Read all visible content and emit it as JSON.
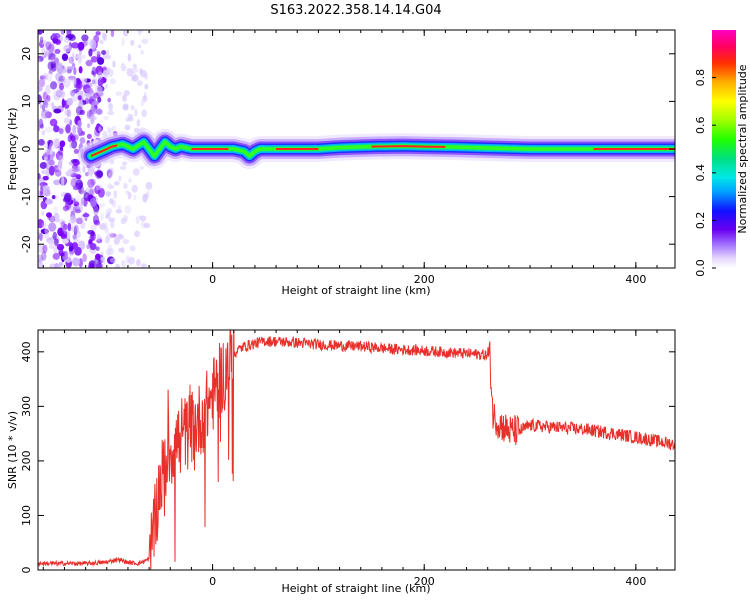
{
  "title": "S163.2022.358.14.14.G04",
  "chart_data": [
    {
      "type": "heatmap",
      "xlabel": "Height of straight line (km)",
      "ylabel": "Frequency (Hz)",
      "xlim": [
        -165,
        437
      ],
      "ylim": [
        -25,
        25
      ],
      "x_ticks": [
        0,
        200,
        400
      ],
      "y_ticks": [
        -20,
        -10,
        0,
        10,
        20
      ],
      "ridge": {
        "x": [
          -115,
          -105,
          -95,
          -85,
          -75,
          -65,
          -60,
          -55,
          -50,
          -45,
          -40,
          -35,
          -30,
          -20,
          0,
          20,
          30,
          35,
          40,
          45,
          50,
          60,
          80,
          100,
          120,
          150,
          180,
          200,
          230,
          260,
          300,
          350,
          400,
          437
        ],
        "y": [
          -1.5,
          -0.5,
          0.5,
          1,
          0,
          1.5,
          0,
          -1.5,
          0,
          1.5,
          0.5,
          0,
          0.5,
          0,
          0,
          0,
          -0.5,
          -1.5,
          -0.5,
          0,
          0,
          0,
          0,
          0,
          0.3,
          0.5,
          0.6,
          0.5,
          0.4,
          0.2,
          0,
          0,
          0,
          0
        ]
      },
      "colorbar": {
        "label": "Normalized spectral amplitude",
        "range": [
          0,
          1
        ],
        "ticks": [
          0.0,
          0.2,
          0.4,
          0.6,
          0.8
        ],
        "tick_labels": [
          "0.0",
          "0.2",
          "0.4",
          "0.6",
          "0.8"
        ],
        "colormap": "gist_ncar"
      }
    },
    {
      "type": "line",
      "xlabel": "Height of straight line (km)",
      "ylabel": "SNR (10 * v/v)",
      "xlim": [
        -165,
        437
      ],
      "ylim": [
        0,
        440
      ],
      "x_ticks": [
        0,
        200,
        400
      ],
      "y_ticks": [
        0,
        100,
        200,
        300,
        400
      ],
      "color": "#e8302a",
      "series": [
        {
          "x": [
            -165,
            -140,
            -120,
            -100,
            -90,
            -80,
            -70,
            -60,
            -55,
            -50,
            -45,
            -40,
            -35,
            -30,
            -25,
            -20,
            -15,
            -10,
            -5,
            0,
            5,
            10,
            15,
            20,
            25,
            30,
            40,
            50,
            70,
            90,
            110,
            140,
            170,
            200,
            230,
            255,
            262,
            265,
            270,
            280,
            290,
            300,
            320,
            350,
            380,
            410,
            437
          ],
          "y": [
            12,
            12,
            12,
            14,
            20,
            14,
            12,
            20,
            80,
            160,
            190,
            220,
            230,
            250,
            250,
            260,
            270,
            280,
            300,
            320,
            340,
            360,
            380,
            395,
            405,
            410,
            415,
            420,
            418,
            415,
            412,
            410,
            405,
            402,
            398,
            395,
            392,
            285,
            270,
            255,
            255,
            265,
            262,
            258,
            250,
            240,
            230
          ]
        }
      ]
    }
  ]
}
